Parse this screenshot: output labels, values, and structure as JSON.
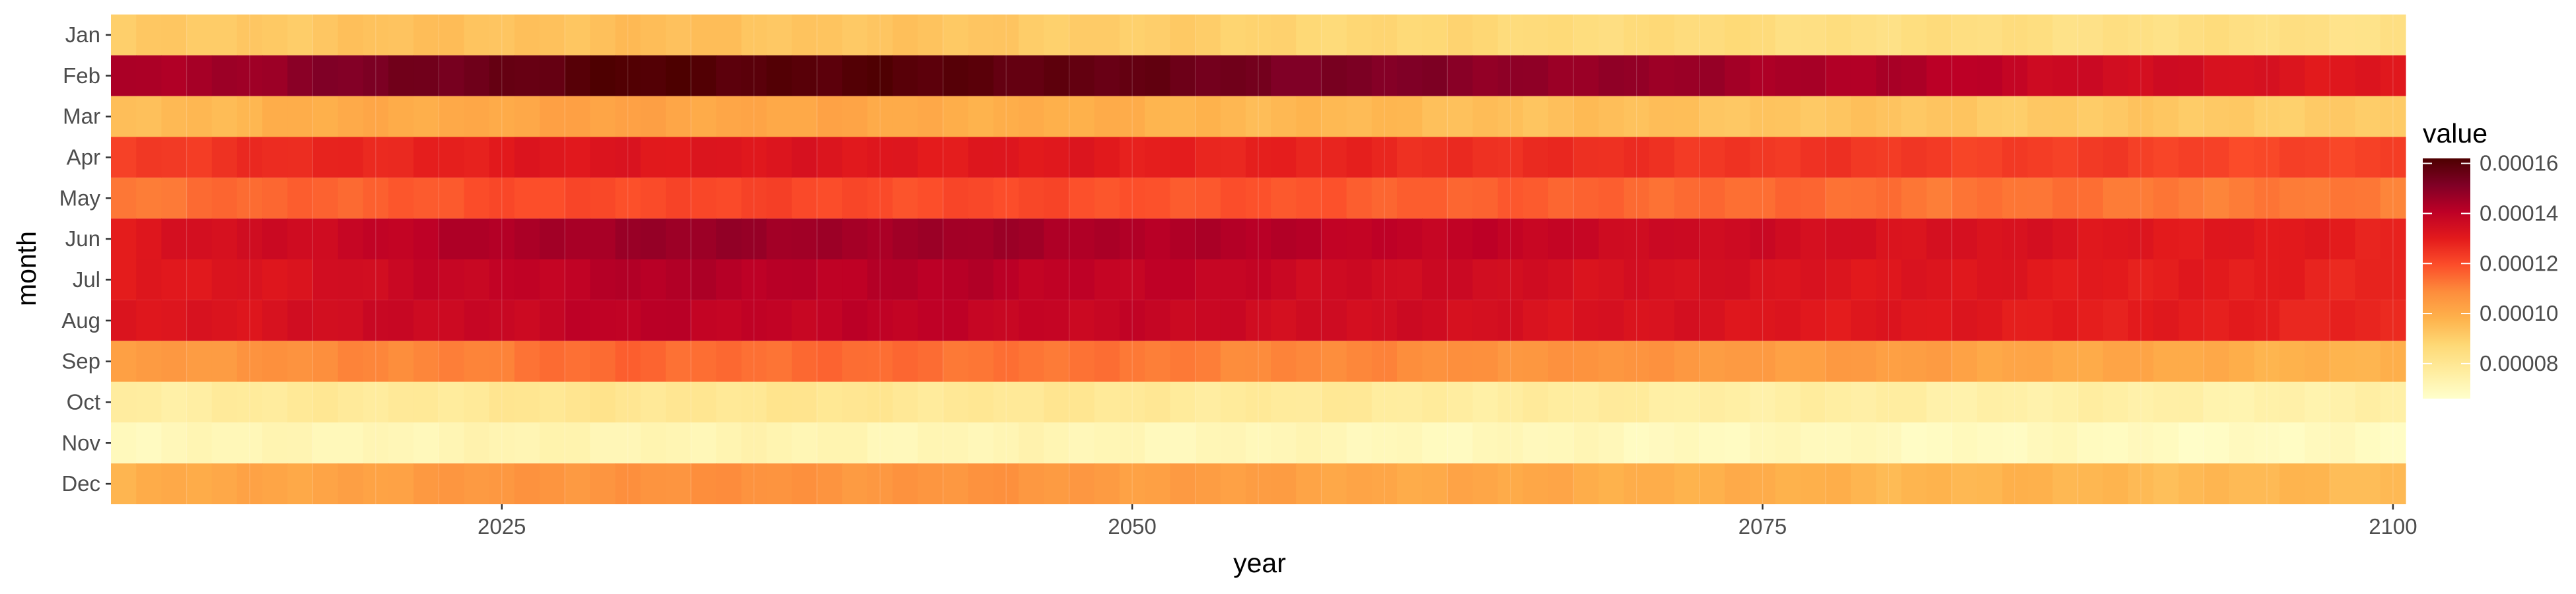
{
  "chart_data": {
    "type": "heatmap",
    "xlabel": "year",
    "ylabel": "month",
    "x_range": [
      2010,
      2100
    ],
    "x_ticks": [
      2025,
      2050,
      2075,
      2100
    ],
    "x_tick_labels": [
      "2025",
      "2050",
      "2075",
      "2100"
    ],
    "y_categories": [
      "Jan",
      "Feb",
      "Mar",
      "Apr",
      "May",
      "Jun",
      "Jul",
      "Aug",
      "Sep",
      "Oct",
      "Nov",
      "Dec"
    ],
    "grid": true,
    "color_scale": {
      "title": "value",
      "palette": [
        "#ffffcc",
        "#ffeda0",
        "#fed976",
        "#feb24c",
        "#fd8d3c",
        "#fc4e2a",
        "#e31a1c",
        "#bd0026",
        "#800026",
        "#4d0000"
      ],
      "domain": [
        6.6e-05,
        0.000162
      ],
      "ticks": [
        8e-05,
        0.0001,
        0.00012,
        0.00014,
        0.00016
      ],
      "tick_labels": [
        "0.00008",
        "0.00010",
        "0.00012",
        "0.00014",
        "0.00016"
      ],
      "position": "right"
    },
    "row_profiles": [
      {
        "month": "Jan",
        "x": [
          2010,
          2020,
          2030,
          2045,
          2060,
          2080,
          2100
        ],
        "values": [
          9.05e-05,
          9.35e-05,
          9.45e-05,
          9.2e-05,
          8.75e-05,
          8.45e-05,
          8.35e-05
        ]
      },
      {
        "month": "Feb",
        "x": [
          2010,
          2020,
          2030,
          2045,
          2060,
          2080,
          2090,
          2100
        ],
        "values": [
          0.000142,
          0.000152,
          0.000161,
          0.000159,
          0.000151,
          0.000143,
          0.000135,
          0.000131
        ]
      },
      {
        "month": "Mar",
        "x": [
          2010,
          2020,
          2030,
          2045,
          2060,
          2080,
          2100
        ],
        "values": [
          9.5e-05,
          0.0001,
          0.0001025,
          9.95e-05,
          9.55e-05,
          9.25e-05,
          9.1e-05
        ]
      },
      {
        "month": "Apr",
        "x": [
          2010,
          2020,
          2030,
          2045,
          2060,
          2080,
          2100
        ],
        "values": [
          0.000123,
          0.000128,
          0.000132,
          0.000131,
          0.000127,
          0.0001235,
          0.000121
        ]
      },
      {
        "month": "May",
        "x": [
          2010,
          2020,
          2030,
          2045,
          2060,
          2080,
          2100
        ],
        "values": [
          0.000112,
          0.000117,
          0.000121,
          0.00012,
          0.000117,
          0.0001135,
          0.000111
        ]
      },
      {
        "month": "Jun",
        "x": [
          2010,
          2020,
          2030,
          2045,
          2060,
          2080,
          2100
        ],
        "values": [
          0.000131,
          0.000139,
          0.000147,
          0.000145,
          0.00014,
          0.000134,
          0.000129
        ]
      },
      {
        "month": "Jul",
        "x": [
          2010,
          2020,
          2030,
          2045,
          2060,
          2080,
          2100
        ],
        "values": [
          0.000129,
          0.000136,
          0.000142,
          0.000141,
          0.000136,
          0.000132,
          0.000128
        ]
      },
      {
        "month": "Aug",
        "x": [
          2010,
          2020,
          2030,
          2045,
          2060,
          2080,
          2100
        ],
        "values": [
          0.000131,
          0.000136,
          0.00014,
          0.000139,
          0.000135,
          0.000131,
          0.000128
        ]
      },
      {
        "month": "Sep",
        "x": [
          2010,
          2020,
          2030,
          2045,
          2060,
          2080,
          2100
        ],
        "values": [
          0.000104,
          0.000109,
          0.000115,
          0.0001135,
          0.0001085,
          0.0001035,
          9.75e-05
        ]
      },
      {
        "month": "Oct",
        "x": [
          2010,
          2020,
          2030,
          2045,
          2060,
          2080,
          2100
        ],
        "values": [
          7.65e-05,
          7.85e-05,
          8.05e-05,
          7.95e-05,
          7.75e-05,
          7.55e-05,
          7.4e-05
        ]
      },
      {
        "month": "Nov",
        "x": [
          2010,
          2020,
          2030,
          2045,
          2060,
          2080,
          2100
        ],
        "values": [
          7.05e-05,
          7.15e-05,
          7.25e-05,
          7.15e-05,
          7.05e-05,
          6.95e-05,
          6.85e-05
        ]
      },
      {
        "month": "Dec",
        "x": [
          2010,
          2020,
          2030,
          2045,
          2060,
          2080,
          2100
        ],
        "values": [
          9.85e-05,
          0.0001035,
          0.0001075,
          0.000106,
          0.0001015,
          9.75e-05,
          9.55e-05
        ]
      }
    ]
  }
}
